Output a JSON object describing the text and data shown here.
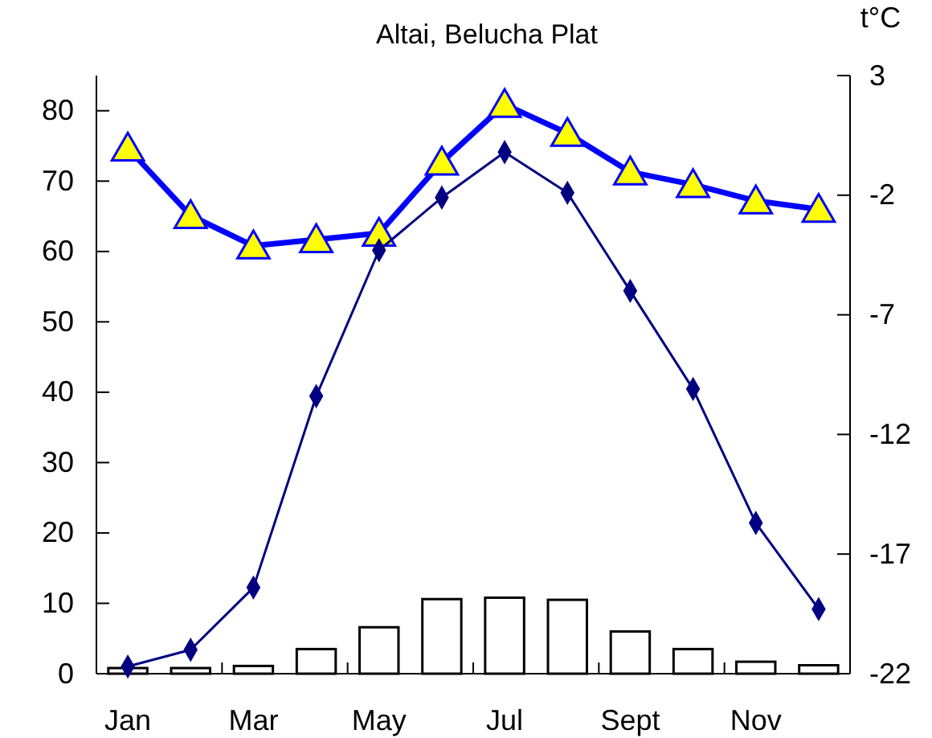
{
  "chart_data": {
    "type": "bar",
    "title": "Altai, Belucha Plat",
    "y2label": "t°C",
    "categories": [
      "Jan",
      null,
      "Mar",
      null,
      "May",
      null,
      "Jul",
      null,
      "Sept",
      null,
      "Nov",
      null
    ],
    "series": [
      {
        "color": "#ffffff",
        "values": [
          0.8,
          0.8,
          1.1,
          3.5,
          6.6,
          10.6,
          10.8,
          10.5,
          6.0,
          3.5,
          1.7,
          1.2
        ]
      },
      {
        "type": "line",
        "color": "#0000ff",
        "marker": "triangle",
        "values": [
          74.7,
          65.1,
          60.8,
          61.7,
          62.6,
          72.7,
          80.9,
          76.8,
          71.3,
          69.5,
          67.2,
          66.0
        ]
      },
      {
        "type": "line",
        "color": "#000080",
        "marker": "diamond",
        "axis": "y2",
        "values": [
          -21.7,
          -21.0,
          -18.4,
          -10.4,
          -4.3,
          -2.1,
          -0.2,
          -1.9,
          -6.0,
          -10.1,
          -15.7,
          -19.3
        ]
      }
    ],
    "ylim": [
      0,
      85
    ],
    "yticks": [
      0,
      10,
      20,
      30,
      40,
      50,
      60,
      70,
      80
    ],
    "y2lim": [
      -22,
      3
    ],
    "y2ticks": [
      -22,
      -17,
      -12,
      -7,
      -2,
      3
    ],
    "grid": false
  }
}
